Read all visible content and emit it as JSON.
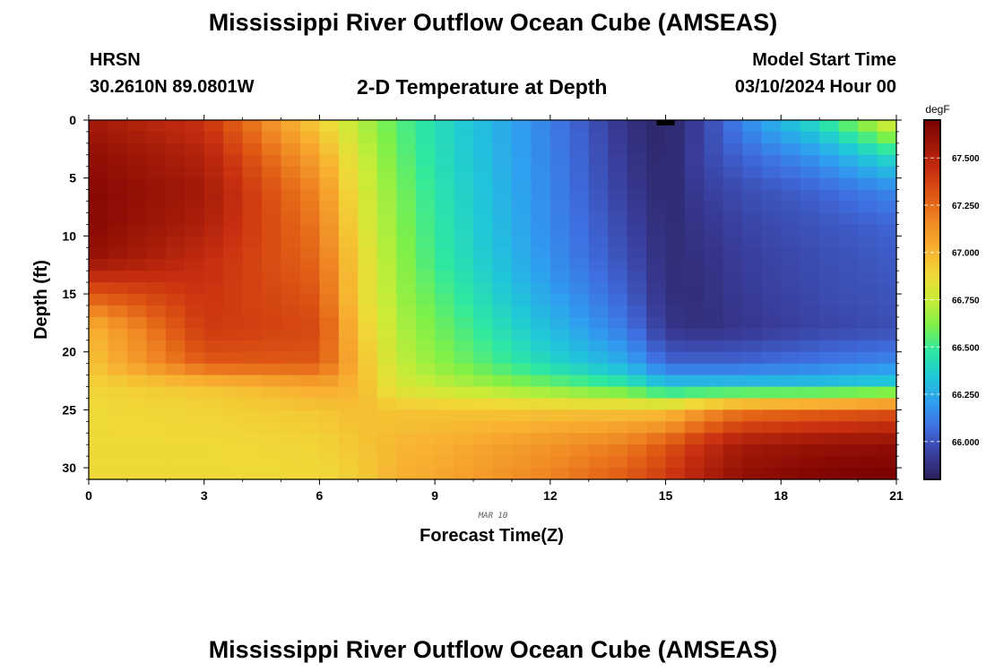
{
  "header": {
    "title": "Mississippi River Outflow Ocean Cube (AMSEAS)",
    "station": "HRSN",
    "coordinates": "30.2610N  89.0801W",
    "plot_title": "2-D Temperature at Depth",
    "model_start_label": "Model Start Time",
    "model_start_value": "03/10/2024 Hour 00"
  },
  "footer": {
    "title": "Mississippi River Outflow Ocean Cube (AMSEAS)"
  },
  "chart_data": {
    "type": "heatmap",
    "title": "2-D Temperature at Depth",
    "xlabel": "Forecast Time(Z)",
    "ylabel": "Depth (ft)",
    "date_label": "MAR 10",
    "x_ticks": [
      "0",
      "3",
      "6",
      "9",
      "12",
      "15",
      "18",
      "21"
    ],
    "y_ticks": [
      "0",
      "5",
      "10",
      "15",
      "20",
      "25",
      "30"
    ],
    "xlim": [
      0,
      21
    ],
    "ylim": [
      31,
      0
    ],
    "colorbar": {
      "unit": "degF",
      "ticks": [
        "66.000",
        "66.250",
        "66.500",
        "66.750",
        "67.000",
        "67.250",
        "67.500"
      ],
      "min": 65.8,
      "max": 67.7,
      "colors": [
        "#2a1f5a",
        "#3a3f9e",
        "#3f6ee0",
        "#2f9ef0",
        "#1fc8d8",
        "#2ee8a0",
        "#7ef048",
        "#c8ec38",
        "#f0d838",
        "#f8b030",
        "#f08a24",
        "#e05a14",
        "#c83010",
        "#a01808",
        "#780000"
      ]
    },
    "profiles": [
      {
        "hour": 0,
        "values": [
          67.55,
          67.62,
          67.65,
          67.65,
          67.6,
          67.3,
          67.0,
          66.95,
          66.9,
          66.88,
          66.88,
          66.88
        ]
      },
      {
        "hour": 3,
        "values": [
          67.42,
          67.5,
          67.55,
          67.52,
          67.45,
          67.42,
          67.4,
          67.3,
          66.95,
          66.9,
          66.88,
          66.88
        ]
      },
      {
        "hour": 6,
        "values": [
          66.9,
          67.05,
          67.15,
          67.2,
          67.25,
          67.3,
          67.35,
          67.3,
          67.05,
          66.95,
          66.9,
          66.88
        ]
      },
      {
        "hour": 7,
        "values": [
          66.72,
          66.78,
          66.82,
          66.85,
          66.9,
          66.9,
          66.95,
          67.0,
          67.0,
          66.98,
          66.95,
          66.92
        ]
      },
      {
        "hour": 8,
        "values": [
          66.55,
          66.58,
          66.62,
          66.64,
          66.66,
          66.68,
          66.72,
          66.75,
          66.8,
          66.95,
          67.0,
          67.02
        ]
      },
      {
        "hour": 9,
        "values": [
          66.43,
          66.44,
          66.46,
          66.48,
          66.5,
          66.55,
          66.6,
          66.65,
          66.75,
          66.95,
          67.02,
          67.05
        ]
      },
      {
        "hour": 12,
        "values": [
          66.12,
          66.13,
          66.14,
          66.15,
          66.17,
          66.22,
          66.3,
          66.4,
          66.6,
          66.95,
          67.12,
          67.18
        ]
      },
      {
        "hour": 14,
        "values": [
          65.88,
          65.9,
          65.92,
          65.95,
          65.98,
          66.03,
          66.1,
          66.25,
          66.5,
          66.95,
          67.2,
          67.3
        ]
      },
      {
        "hour": 15,
        "values": [
          65.82,
          65.83,
          65.84,
          65.85,
          65.86,
          65.87,
          65.9,
          66.05,
          66.35,
          66.95,
          67.3,
          67.4
        ]
      },
      {
        "hour": 16,
        "values": [
          65.95,
          65.96,
          65.93,
          65.9,
          65.88,
          65.87,
          65.87,
          66.05,
          66.35,
          67.1,
          67.45,
          67.52
        ]
      },
      {
        "hour": 17,
        "values": [
          66.15,
          66.05,
          65.98,
          65.95,
          65.93,
          65.92,
          65.9,
          66.05,
          66.35,
          67.2,
          67.55,
          67.62
        ]
      },
      {
        "hour": 19,
        "values": [
          66.45,
          66.2,
          66.05,
          66.0,
          65.98,
          65.97,
          65.95,
          66.1,
          66.35,
          67.25,
          67.6,
          67.68
        ]
      },
      {
        "hour": 21,
        "values": [
          66.85,
          66.45,
          66.15,
          66.05,
          66.02,
          66.0,
          65.98,
          66.15,
          66.4,
          67.3,
          67.62,
          67.7
        ]
      }
    ],
    "profile_depths": [
      0,
      3,
      6,
      9,
      12,
      15,
      18,
      21,
      23,
      25,
      28,
      31
    ]
  }
}
